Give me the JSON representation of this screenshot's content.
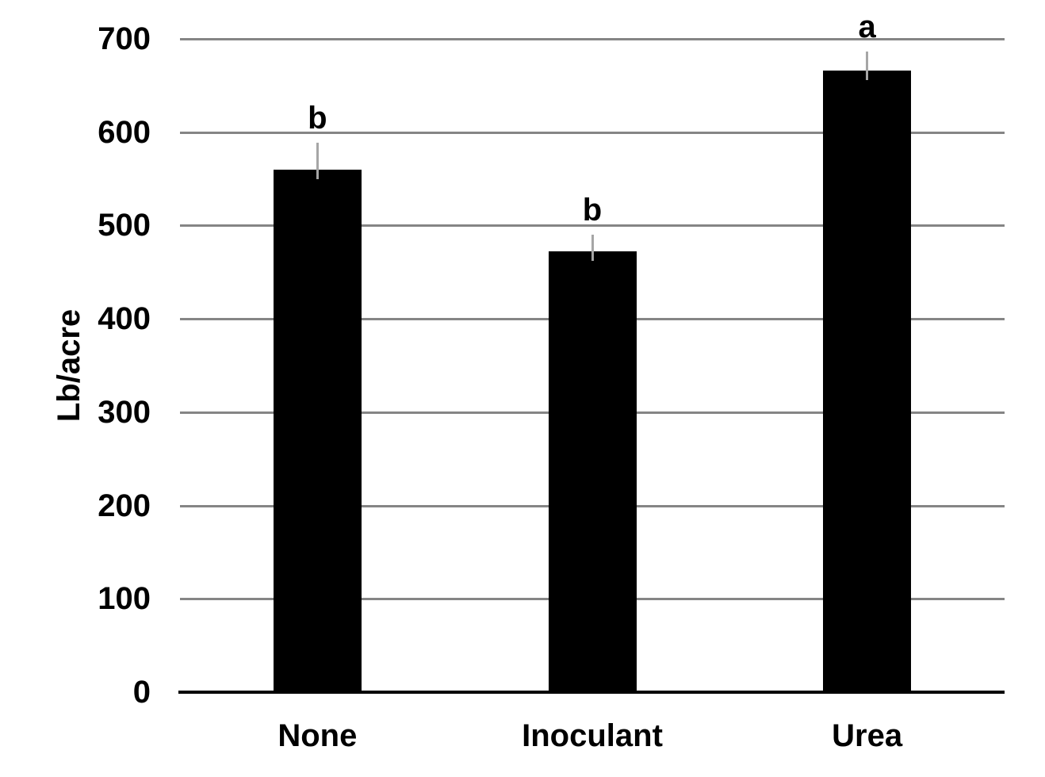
{
  "chart_data": {
    "type": "bar",
    "title": "",
    "categories": [
      "None",
      "Inoculant",
      "Urea"
    ],
    "values": [
      560,
      472,
      666
    ],
    "errors_plus": [
      29,
      18,
      20
    ],
    "significance_letters": [
      "b",
      "b",
      "a"
    ],
    "xlabel": "",
    "ylabel": "Lb/acre",
    "ylim": [
      0,
      700
    ],
    "yticks": [
      0,
      100,
      200,
      300,
      400,
      500,
      600,
      700
    ],
    "grid": true,
    "legend": "none",
    "colors": {
      "bar": "#000000",
      "gridline": "#858585",
      "error_bar": "#A6A6A6",
      "axis_line": "#000000",
      "text": "#000000",
      "background": "#FFFFFF"
    }
  }
}
